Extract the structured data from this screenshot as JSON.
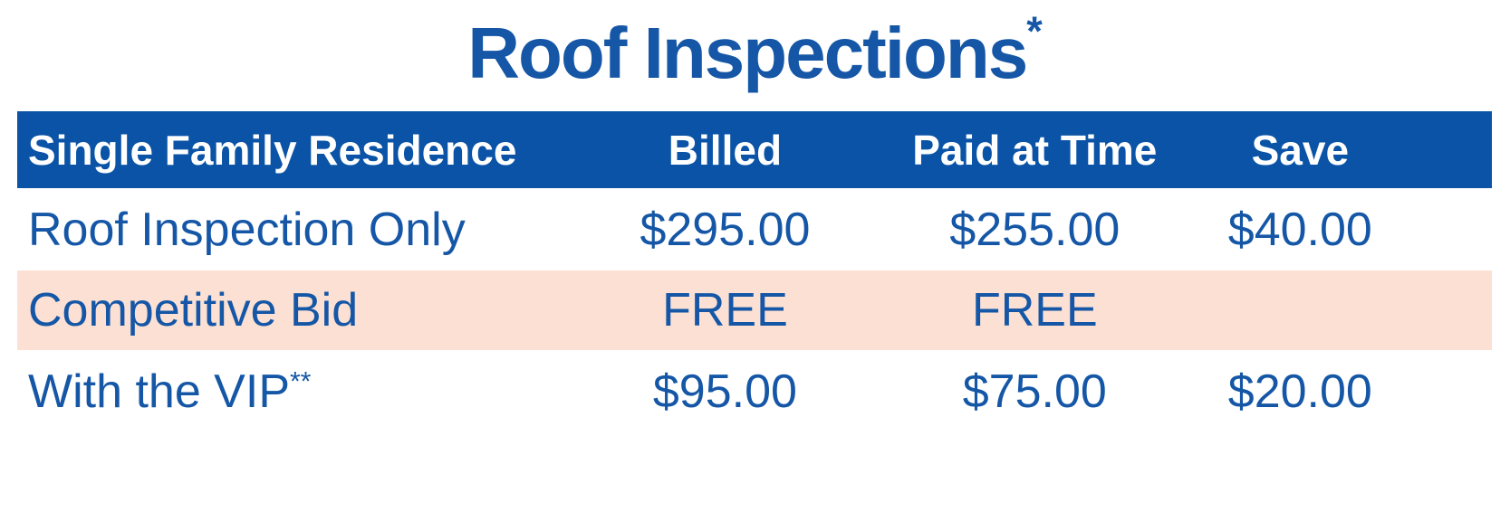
{
  "title": {
    "text": "Roof Inspections",
    "asterisk": "*"
  },
  "colors": {
    "header_bg": "#0a53a6",
    "body_text_blue": "#1557a6",
    "header_text": "#ffffff",
    "highlight_row_bg": "#fce0d3",
    "page_bg": "#ffffff"
  },
  "table": {
    "columns": {
      "label": "Single Family Residence",
      "billed": "Billed",
      "paid_at_time": "Paid at Time",
      "save": "Save"
    },
    "rows": [
      {
        "label": "Roof Inspection Only",
        "label_suffix": "",
        "billed": "$295.00",
        "paid_at_time": "$255.00",
        "save": "$40.00",
        "highlight": false
      },
      {
        "label": "Competitive Bid",
        "label_suffix": "",
        "billed": "FREE",
        "paid_at_time": "FREE",
        "save": "",
        "highlight": true
      },
      {
        "label": "With the VIP",
        "label_suffix": "**",
        "billed": "$95.00",
        "paid_at_time": "$75.00",
        "save": "$20.00",
        "highlight": false
      }
    ]
  },
  "chart_data": {
    "type": "table",
    "title": "Roof Inspections*",
    "columns": [
      "Single Family Residence",
      "Billed",
      "Paid at Time",
      "Save"
    ],
    "rows": [
      [
        "Roof Inspection Only",
        "$295.00",
        "$255.00",
        "$40.00"
      ],
      [
        "Competitive Bid",
        "FREE",
        "FREE",
        ""
      ],
      [
        "With the VIP**",
        "$95.00",
        "$75.00",
        "$20.00"
      ]
    ],
    "notes": "Row 'Competitive Bid' is highlighted with a light pink background; title has a superscript asterisk footnote marker; 'With the VIP' carries a double-asterisk footnote marker."
  }
}
